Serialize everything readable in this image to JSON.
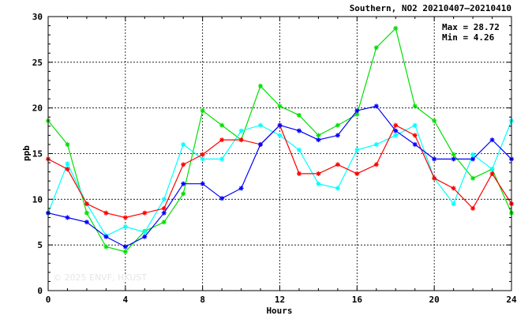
{
  "chart_data": {
    "type": "line",
    "title": "Southern, NO2 20210407–20210410",
    "xlabel": "Hours",
    "ylabel": "ppb",
    "xlim": [
      0,
      24
    ],
    "ylim": [
      0,
      30
    ],
    "x_ticks": [
      0,
      4,
      8,
      12,
      16,
      20,
      24
    ],
    "y_ticks": [
      0,
      5,
      10,
      15,
      20,
      25,
      30
    ],
    "grid": true,
    "legend": "none",
    "stats": {
      "max_label": "Max = 28.72",
      "min_label": "Min =  4.26"
    },
    "watermark": "© 2025 ENVF, HKUST",
    "x": [
      0,
      1,
      2,
      3,
      4,
      5,
      6,
      7,
      8,
      9,
      10,
      11,
      12,
      13,
      14,
      15,
      16,
      17,
      18,
      19,
      20,
      21,
      22,
      23,
      24
    ],
    "series": [
      {
        "color": "#00e000",
        "values": [
          18.6,
          16.0,
          8.5,
          4.8,
          4.26,
          6.5,
          7.5,
          10.6,
          19.7,
          18.1,
          16.5,
          22.4,
          20.2,
          19.2,
          17.0,
          18.1,
          19.3,
          26.6,
          28.72,
          20.2,
          18.6,
          14.9,
          12.3,
          13.3,
          8.5
        ]
      },
      {
        "color": "#00ffff",
        "values": [
          8.5,
          13.9,
          9.5,
          6.0,
          7.0,
          6.4,
          10.0,
          16.0,
          14.4,
          14.4,
          17.5,
          18.1,
          17.0,
          15.4,
          11.7,
          11.2,
          15.4,
          16.0,
          17.0,
          18.1,
          12.3,
          9.5,
          14.9,
          13.3,
          18.6
        ]
      },
      {
        "color": "#ff0000",
        "values": [
          14.4,
          13.3,
          9.5,
          8.5,
          8.0,
          8.5,
          9.0,
          13.8,
          14.9,
          16.5,
          16.5,
          16.0,
          18.1,
          12.8,
          12.8,
          13.8,
          12.8,
          13.8,
          18.1,
          17.0,
          12.3,
          11.2,
          9.0,
          12.8,
          9.5
        ]
      },
      {
        "color": "#0000ff",
        "values": [
          8.5,
          8.0,
          7.5,
          5.9,
          4.8,
          5.9,
          8.5,
          11.7,
          11.7,
          10.1,
          11.2,
          16.0,
          18.1,
          17.5,
          16.5,
          17.0,
          19.7,
          20.2,
          17.5,
          16.0,
          14.4,
          14.4,
          14.4,
          16.5,
          14.4
        ]
      }
    ]
  }
}
